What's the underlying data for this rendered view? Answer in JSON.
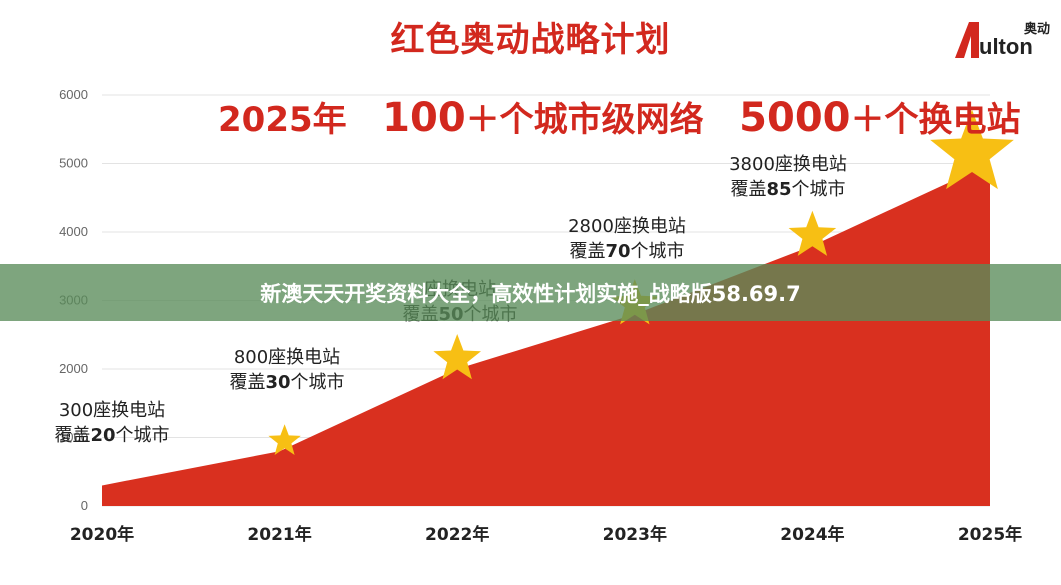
{
  "title": "红色奥动战略计划",
  "subtitle": {
    "year": "2025年",
    "cities": "100",
    "cities_label": "＋个城市级网络",
    "stations": "5000",
    "stations_label": "＋个换电站"
  },
  "logo": {
    "cn": "奥动",
    "word": "ulton"
  },
  "banner": "新澳天天开奖资料大全，高效性计划实施_战略版58.69.7",
  "colors": {
    "accent": "#d2281e",
    "area": "#d9301f",
    "star": "#f7bf14",
    "banner": "#5a8c5a"
  },
  "chart_data": {
    "type": "area",
    "title": "红色奥动战略计划",
    "categories": [
      "2020年",
      "2021年",
      "2022年",
      "2023年",
      "2024年",
      "2025年"
    ],
    "x": [
      2020,
      2021,
      2022,
      2023,
      2024,
      2025
    ],
    "values": [
      300,
      800,
      2000,
      2800,
      3800,
      5000
    ],
    "ylim": [
      0,
      6000
    ],
    "yticks": [
      0,
      1000,
      2000,
      3000,
      4000,
      5000,
      6000
    ],
    "grid": true,
    "annotations": [
      {
        "line1": "300座换电站",
        "line2_pre": "覆盖",
        "line2_num": "20",
        "line2_post": "个城市"
      },
      {
        "line1": "800座换电站",
        "line2_pre": "覆盖",
        "line2_num": "30",
        "line2_post": "个城市"
      },
      {
        "line1": "座换电站",
        "line2_pre": "覆盖",
        "line2_num": "50",
        "line2_post": "个城市"
      },
      {
        "line1": "2800座换电站",
        "line2_pre": "覆盖",
        "line2_num": "70",
        "line2_post": "个城市"
      },
      {
        "line1": "3800座换电站",
        "line2_pre": "覆盖",
        "line2_num": "85",
        "line2_post": "个城市"
      }
    ],
    "star_markers": [
      {
        "x": 2021,
        "y": 800,
        "size": "small"
      },
      {
        "x": 2022,
        "y": 2000,
        "size": "medium"
      },
      {
        "x": 2023,
        "y": 2800,
        "size": "medium"
      },
      {
        "x": 2024,
        "y": 3800,
        "size": "medium"
      },
      {
        "x": 2025,
        "y": 5000,
        "size": "large"
      }
    ]
  }
}
